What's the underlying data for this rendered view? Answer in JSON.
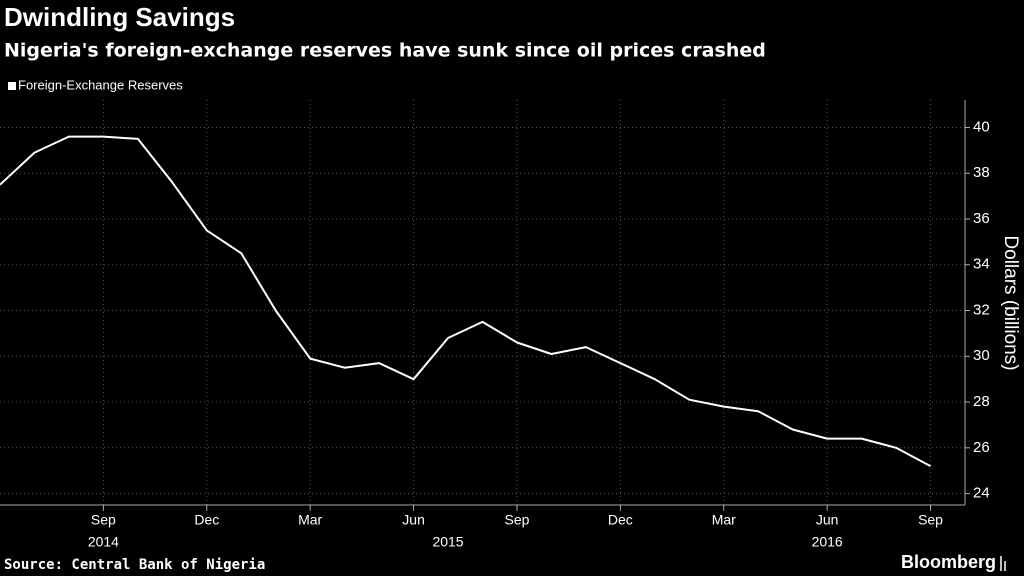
{
  "chart_data": {
    "type": "line",
    "title": "Dwindling Savings",
    "subtitle": "Nigeria's foreign-exchange reserves have sunk since oil prices crashed",
    "y_axis_label": "Dollars (billions)",
    "source": "Source:  Central Bank of Nigeria",
    "logo": "Bloomberg",
    "legend_position": "top-left",
    "grid": true,
    "x": [
      "2014-06",
      "2014-07",
      "2014-08",
      "2014-09",
      "2014-10",
      "2014-11",
      "2014-12",
      "2015-01",
      "2015-02",
      "2015-03",
      "2015-04",
      "2015-05",
      "2015-06",
      "2015-07",
      "2015-08",
      "2015-09",
      "2015-10",
      "2015-11",
      "2015-12",
      "2016-01",
      "2016-02",
      "2016-03",
      "2016-04",
      "2016-05",
      "2016-06",
      "2016-07",
      "2016-08",
      "2016-09"
    ],
    "series": [
      {
        "name": "Foreign-Exchange Reserves",
        "color": "#ffffff",
        "values": [
          37.5,
          38.9,
          39.6,
          39.6,
          39.5,
          37.6,
          35.5,
          34.5,
          32.0,
          29.9,
          29.5,
          29.7,
          29.0,
          30.8,
          31.5,
          30.6,
          30.1,
          30.4,
          29.7,
          29.0,
          28.1,
          27.8,
          27.6,
          26.8,
          26.4,
          26.4,
          26.0,
          25.2
        ]
      }
    ],
    "xlim": [
      "2014-06",
      "2016-10"
    ],
    "xticks": [
      {
        "value": "2014-09",
        "label": "Sep"
      },
      {
        "value": "2014-12",
        "label": "Dec"
      },
      {
        "value": "2015-03",
        "label": "Mar"
      },
      {
        "value": "2015-06",
        "label": "Jun"
      },
      {
        "value": "2015-09",
        "label": "Sep"
      },
      {
        "value": "2015-12",
        "label": "Dec"
      },
      {
        "value": "2016-03",
        "label": "Mar"
      },
      {
        "value": "2016-06",
        "label": "Jun"
      },
      {
        "value": "2016-09",
        "label": "Sep"
      }
    ],
    "year_labels": [
      {
        "value": "2014-09",
        "label": "2014"
      },
      {
        "value": "2015-07",
        "label": "2015"
      },
      {
        "value": "2016-06",
        "label": "2016"
      }
    ],
    "ylim": [
      23.5,
      41.2
    ],
    "yticks": [
      24,
      26,
      28,
      30,
      32,
      34,
      36,
      38,
      40
    ]
  }
}
